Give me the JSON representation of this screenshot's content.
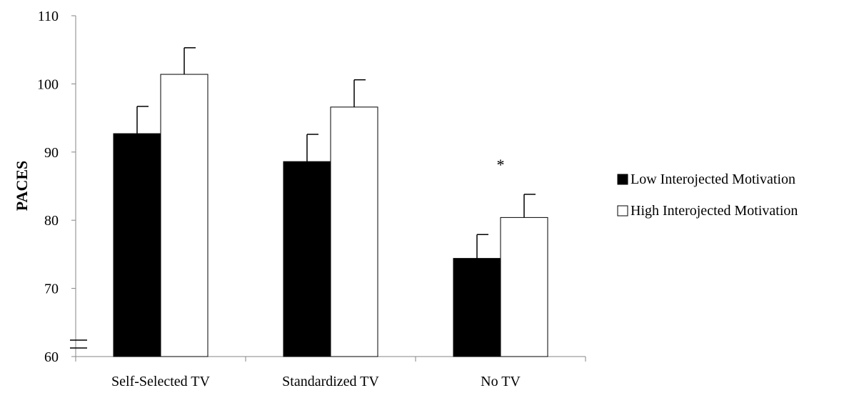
{
  "chart_data": {
    "type": "bar",
    "title": "",
    "xlabel": "",
    "ylabel": "PACES",
    "ylim": [
      60,
      110
    ],
    "yticks": [
      60,
      70,
      80,
      90,
      100,
      110
    ],
    "axis_break": true,
    "categories": [
      "Self-Selected TV",
      "Standardized TV",
      "No TV"
    ],
    "series": [
      {
        "name": "Low Interojected Motivation",
        "color": "#000000",
        "values": [
          92.7,
          88.6,
          74.4
        ],
        "errors": [
          4.0,
          4.0,
          3.5
        ]
      },
      {
        "name": "High Interojected Motivation",
        "color": "#ffffff",
        "values": [
          101.4,
          96.6,
          80.4
        ],
        "errors": [
          3.9,
          4.0,
          3.4
        ]
      }
    ],
    "annotations": [
      {
        "text": "*",
        "category": "No TV"
      }
    ],
    "legend_position": "right",
    "grid": false
  }
}
